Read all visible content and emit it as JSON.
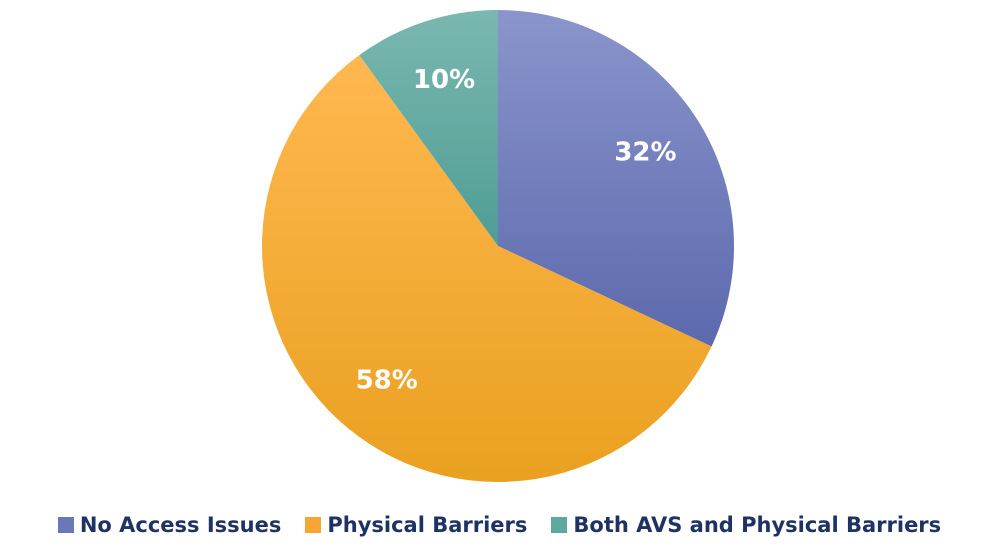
{
  "chart_data": {
    "type": "pie",
    "title": "",
    "slices": [
      {
        "label": "No Access Issues",
        "value": 32,
        "display": "32%",
        "color": "#6a78b8"
      },
      {
        "label": "Physical Barriers",
        "value": 58,
        "display": "58%",
        "color": "#f7a634"
      },
      {
        "label": "Both AVS and Physical Barriers",
        "value": 10,
        "display": "10%",
        "color": "#5fa8a0"
      }
    ],
    "start_angle_deg": 0,
    "direction": "clockwise",
    "legend_position": "bottom"
  },
  "legend": {
    "items": [
      {
        "label": "No Access Issues",
        "color": "#6a78b8"
      },
      {
        "label": "Physical Barriers",
        "color": "#f7a634"
      },
      {
        "label": "Both AVS and Physical Barriers",
        "color": "#5fa8a0"
      }
    ]
  }
}
